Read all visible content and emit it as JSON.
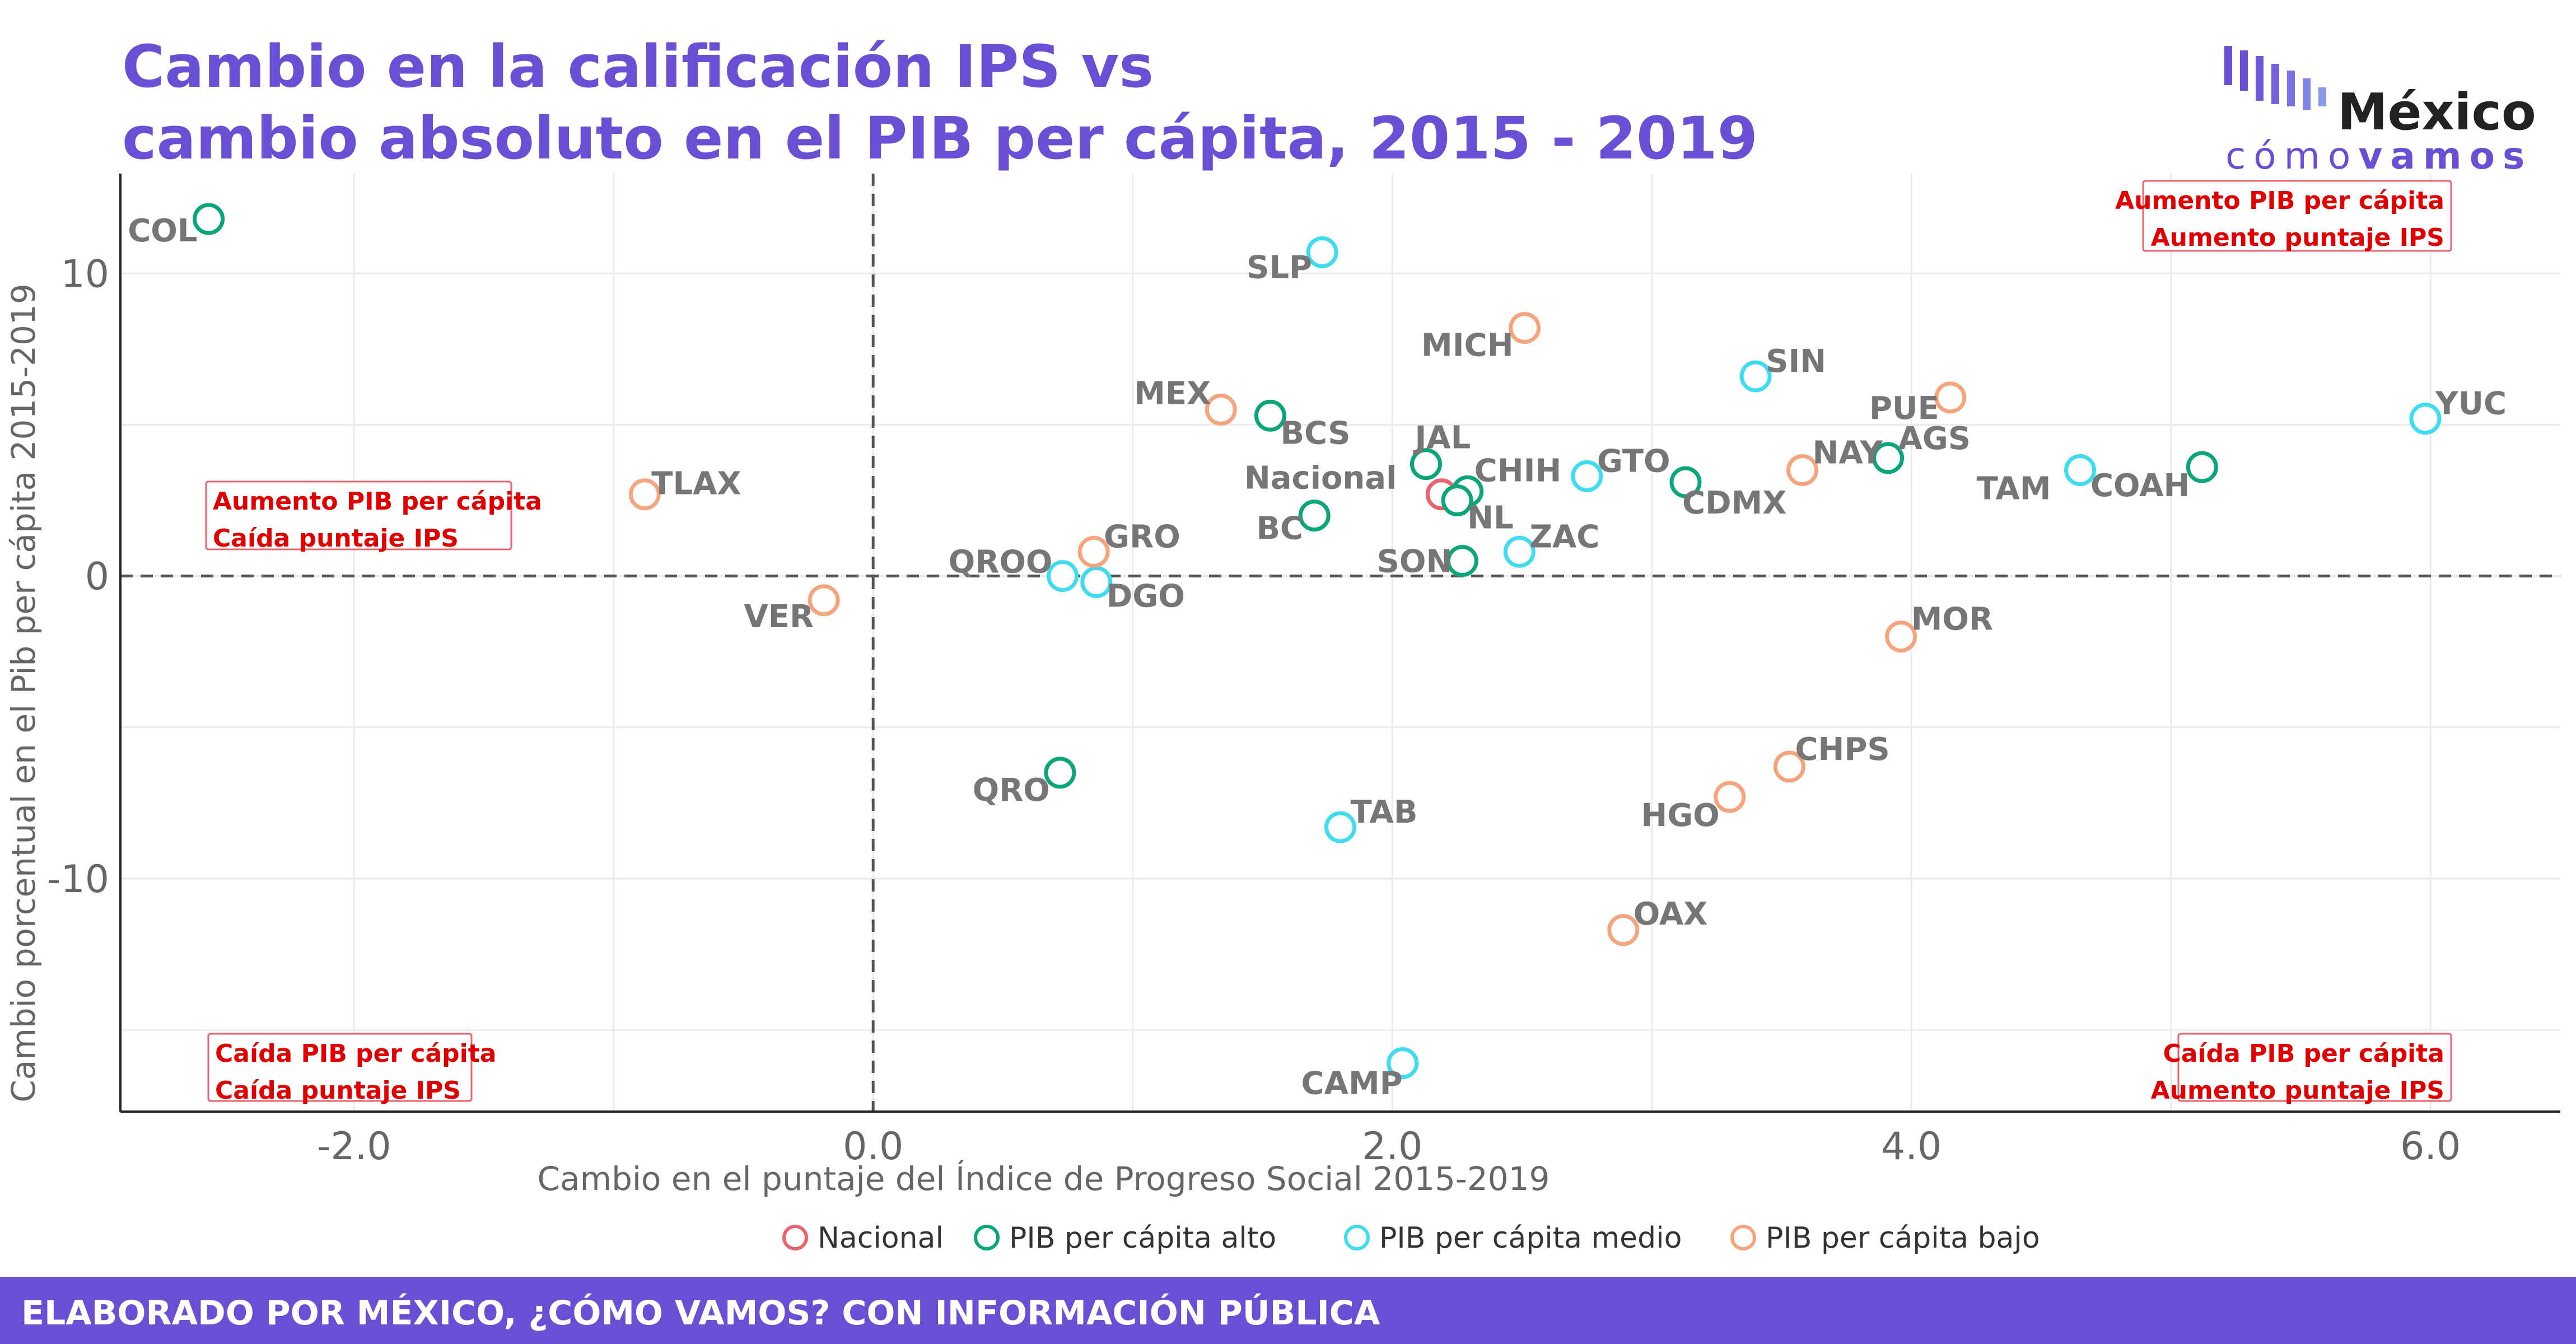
{
  "title_line1": "Cambio en la calificación IPS vs",
  "title_line2": "cambio absoluto en el PIB per cápita, 2015 - 2019",
  "logo": {
    "name": "México",
    "sub_light": "cómo",
    "sub_bold": "vamos"
  },
  "footer": "ELABORADO POR MÉXICO, ¿CÓMO VAMOS? CON INFORMACIÓN PÚBLICA",
  "chart_data": {
    "type": "scatter",
    "xlabel": "Cambio en el puntaje del Índice de Progreso Social 2015-2019",
    "ylabel": "Cambio porcentual en el Pib per cápita 2015-2019",
    "xlim": [
      -2.9,
      6.5
    ],
    "ylim": [
      -17.7,
      13.3
    ],
    "xticks": [
      -2.0,
      0.0,
      2.0,
      4.0,
      6.0
    ],
    "xtick_labels": [
      "-2.0",
      "0.0",
      "2.0",
      "4.0",
      "6.0"
    ],
    "yticks": [
      -10,
      0,
      10
    ],
    "ytick_labels": [
      "-10",
      "0",
      "10"
    ],
    "grid": true,
    "reference_lines": {
      "x": 0,
      "y": 0
    },
    "legend_position": "bottom",
    "colors": {
      "Nacional": "#e8636d",
      "alto": "#0aa57a",
      "medio": "#3fdcf0",
      "bajo": "#f4a57e"
    },
    "series": [
      {
        "name": "Nacional",
        "color_key": "Nacional",
        "points": [
          {
            "label": "Nacional",
            "x": 2.19,
            "y": 2.7
          }
        ]
      },
      {
        "name": "PIB per cápita alto",
        "color_key": "alto",
        "points": [
          {
            "label": "COL",
            "x": -2.56,
            "y": 11.8
          },
          {
            "label": "BCS",
            "x": 1.53,
            "y": 5.3
          },
          {
            "label": "JAL",
            "x": 2.13,
            "y": 3.7
          },
          {
            "label": "CHIH",
            "x": 2.29,
            "y": 2.8
          },
          {
            "label": "NL",
            "x": 2.25,
            "y": 2.5
          },
          {
            "label": "BC",
            "x": 1.7,
            "y": 2.0
          },
          {
            "label": "SON",
            "x": 2.27,
            "y": 0.5
          },
          {
            "label": "CDMX",
            "x": 3.13,
            "y": 3.1
          },
          {
            "label": "AGS",
            "x": 3.91,
            "y": 3.9
          },
          {
            "label": "COAH",
            "x": 5.12,
            "y": 3.6
          },
          {
            "label": "QRO",
            "x": 0.72,
            "y": -6.5
          }
        ]
      },
      {
        "name": "PIB per cápita medio",
        "color_key": "medio",
        "points": [
          {
            "label": "SLP",
            "x": 1.73,
            "y": 10.7
          },
          {
            "label": "SIN",
            "x": 3.4,
            "y": 6.6
          },
          {
            "label": "YUC",
            "x": 5.98,
            "y": 5.2
          },
          {
            "label": "TAM",
            "x": 4.65,
            "y": 3.5
          },
          {
            "label": "GTO",
            "x": 2.75,
            "y": 3.3
          },
          {
            "label": "ZAC",
            "x": 2.49,
            "y": 0.8
          },
          {
            "label": "QROO",
            "x": 0.73,
            "y": 0.0
          },
          {
            "label": "DGO",
            "x": 0.86,
            "y": -0.2
          },
          {
            "label": "TAB",
            "x": 1.8,
            "y": -8.3
          },
          {
            "label": "CAMP",
            "x": 2.04,
            "y": -16.1
          }
        ]
      },
      {
        "name": "PIB per cápita bajo",
        "color_key": "bajo",
        "points": [
          {
            "label": "MICH",
            "x": 2.51,
            "y": 8.2
          },
          {
            "label": "MEX",
            "x": 1.34,
            "y": 5.5
          },
          {
            "label": "PUE",
            "x": 4.15,
            "y": 5.9
          },
          {
            "label": "NAY",
            "x": 3.58,
            "y": 3.5
          },
          {
            "label": "TLAX",
            "x": -0.88,
            "y": 2.7
          },
          {
            "label": "GRO",
            "x": 0.85,
            "y": 0.8
          },
          {
            "label": "VER",
            "x": -0.19,
            "y": -0.8
          },
          {
            "label": "MOR",
            "x": 3.96,
            "y": -2.0
          },
          {
            "label": "CHPS",
            "x": 3.53,
            "y": -6.3
          },
          {
            "label": "HGO",
            "x": 3.3,
            "y": -7.3
          },
          {
            "label": "OAX",
            "x": 2.89,
            "y": -11.7
          }
        ]
      }
    ],
    "quadrant_annotations": [
      {
        "id": "top-right",
        "lines": [
          "Aumento PIB per cápita",
          "Aumento puntaje IPS"
        ],
        "align": "end"
      },
      {
        "id": "top-left",
        "lines": [
          "Aumento PIB per cápita",
          "Caída puntaje IPS"
        ],
        "align": "start"
      },
      {
        "id": "bottom-left",
        "lines": [
          "Caída PIB per cápita",
          "Caída puntaje IPS"
        ],
        "align": "start"
      },
      {
        "id": "bottom-right",
        "lines": [
          "Caída PIB per cápita",
          "Aumento puntaje IPS"
        ],
        "align": "end"
      }
    ],
    "legend": [
      {
        "label": "Nacional",
        "color_key": "Nacional"
      },
      {
        "label": "PIB per cápita alto",
        "color_key": "alto"
      },
      {
        "label": "PIB per cápita medio",
        "color_key": "medio"
      },
      {
        "label": "PIB per cápita bajo",
        "color_key": "bajo"
      }
    ]
  }
}
